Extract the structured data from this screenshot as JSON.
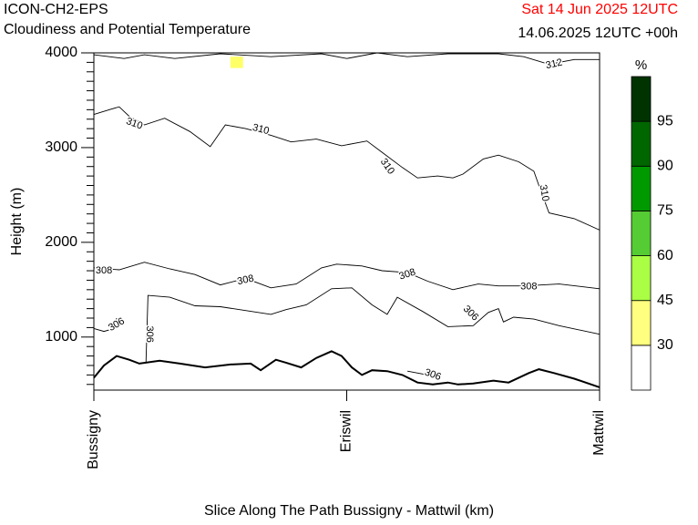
{
  "header": {
    "model": "ICON-CH2-EPS",
    "subtitle": "Cloudiness and Potential Temperature",
    "run_date": "Sat 14 Jun 2025 12UTC",
    "valid_time": "14.06.2025 12UTC +00h"
  },
  "colors": {
    "run_date": "#ff0000",
    "terrain": "#000000",
    "isentrope": "#000000",
    "cloud_patch": "#ffff66"
  },
  "chart_data": {
    "type": "cross-section",
    "xlabel": "Slice Along The Path Bussigny - Mattwil (km)",
    "ylabel": "Height (m)",
    "ylim": [
      440,
      4000
    ],
    "xlim": [
      0,
      1
    ],
    "y_ticks": [
      1000,
      2000,
      3000,
      4000
    ],
    "y_tick_labels": [
      "1000",
      "2000",
      "3000",
      "4000"
    ],
    "x_stations": [
      {
        "name": "Bussigny",
        "pos": 0.0
      },
      {
        "name": "Eriswil",
        "pos": 0.5
      },
      {
        "name": "Mattwil",
        "pos": 1.0
      }
    ],
    "terrain": {
      "x": [
        0,
        0.02,
        0.045,
        0.07,
        0.09,
        0.13,
        0.17,
        0.22,
        0.27,
        0.31,
        0.33,
        0.36,
        0.38,
        0.41,
        0.44,
        0.47,
        0.49,
        0.51,
        0.53,
        0.55,
        0.58,
        0.61,
        0.64,
        0.67,
        0.7,
        0.72,
        0.75,
        0.79,
        0.82,
        0.86,
        0.88,
        0.91,
        0.95,
        1.0
      ],
      "height": [
        570,
        700,
        800,
        760,
        720,
        750,
        720,
        680,
        710,
        720,
        650,
        760,
        730,
        680,
        780,
        850,
        800,
        680,
        600,
        650,
        640,
        600,
        520,
        500,
        520,
        500,
        510,
        540,
        520,
        620,
        660,
        620,
        560,
        470
      ]
    },
    "isentropes": [
      {
        "label": "312",
        "x": [
          0.0,
          0.06,
          0.1,
          0.16,
          0.25,
          0.35,
          0.45,
          0.5,
          0.56,
          0.62,
          0.7,
          0.8,
          0.85,
          0.9,
          0.95,
          1.0
        ],
        "height": [
          3980,
          3940,
          3980,
          3940,
          3990,
          3960,
          3990,
          3940,
          4000,
          3960,
          3990,
          3990,
          3960,
          3880,
          3930,
          3930
        ],
        "labels": [
          {
            "x": 0.91,
            "height": 3880,
            "angle": -12
          }
        ]
      },
      {
        "label": "310",
        "x": [
          0.0,
          0.03,
          0.05,
          0.07,
          0.1,
          0.14,
          0.19,
          0.23,
          0.26,
          0.3,
          0.35,
          0.39,
          0.44,
          0.49,
          0.54,
          0.57,
          0.61,
          0.64,
          0.68,
          0.71,
          0.73,
          0.77,
          0.8,
          0.84,
          0.87,
          0.88,
          0.9,
          0.95,
          1.0
        ],
        "height": [
          3350,
          3400,
          3430,
          3330,
          3240,
          3310,
          3170,
          3010,
          3240,
          3200,
          3130,
          3060,
          3090,
          3020,
          3070,
          2950,
          2790,
          2680,
          2700,
          2680,
          2720,
          2880,
          2920,
          2850,
          2750,
          2600,
          2310,
          2250,
          2130
        ],
        "labels": [
          {
            "x": 0.08,
            "height": 3250,
            "angle": 20
          },
          {
            "x": 0.33,
            "height": 3190,
            "angle": 15
          },
          {
            "x": 0.58,
            "height": 2800,
            "angle": 55
          },
          {
            "x": 0.89,
            "height": 2520,
            "angle": 80
          }
        ]
      },
      {
        "label": "308",
        "x": [
          0.0,
          0.05,
          0.1,
          0.15,
          0.2,
          0.25,
          0.3,
          0.35,
          0.4,
          0.45,
          0.48,
          0.53,
          0.57,
          0.62,
          0.66,
          0.71,
          0.76,
          0.8,
          0.85,
          0.92,
          1.0
        ],
        "height": [
          1730,
          1710,
          1790,
          1720,
          1660,
          1550,
          1620,
          1520,
          1560,
          1730,
          1770,
          1750,
          1700,
          1680,
          1590,
          1500,
          1560,
          1540,
          1540,
          1560,
          1510
        ],
        "labels": [
          {
            "x": 0.02,
            "height": 1700,
            "angle": 0
          },
          {
            "x": 0.3,
            "height": 1600,
            "angle": -12
          },
          {
            "x": 0.62,
            "height": 1660,
            "angle": -18
          },
          {
            "x": 0.86,
            "height": 1530,
            "angle": 0
          }
        ]
      },
      {
        "label": "306",
        "x": [
          0.0,
          0.02,
          0.04,
          0.045
        ],
        "height": [
          1090,
          1060,
          1090,
          1200
        ],
        "labels": [
          {
            "x": 0.045,
            "height": 1130,
            "angle": -30
          }
        ]
      },
      {
        "label": "306",
        "x": [
          0.103,
          0.107,
          0.15,
          0.2,
          0.25,
          0.3,
          0.35,
          0.38,
          0.42,
          0.47,
          0.51,
          0.55,
          0.58,
          0.6,
          0.65,
          0.7,
          0.75,
          0.78,
          0.8,
          0.81,
          0.83,
          0.87,
          0.92,
          1.0
        ],
        "height": [
          730,
          1440,
          1420,
          1330,
          1320,
          1280,
          1240,
          1290,
          1340,
          1510,
          1520,
          1340,
          1240,
          1420,
          1270,
          1110,
          1120,
          1260,
          1300,
          1160,
          1210,
          1190,
          1120,
          1030
        ],
        "labels": [
          {
            "x": 0.11,
            "height": 1030,
            "angle": 90
          },
          {
            "x": 0.745,
            "height": 1250,
            "angle": 45
          }
        ]
      },
      {
        "label": "306",
        "x": [
          0.62,
          0.68
        ],
        "height": [
          640,
          580
        ],
        "labels": [
          {
            "x": 0.67,
            "height": 600,
            "angle": 20
          }
        ]
      }
    ],
    "cloud_patches": [
      {
        "x": [
          0.27,
          0.295
        ],
        "height": [
          3840,
          3960
        ]
      }
    ],
    "legend": {
      "title": "%",
      "placement": "right",
      "levels": [
        "30",
        "45",
        "60",
        "75",
        "90",
        "95"
      ],
      "colors": [
        "#ffffff",
        "#ffff80",
        "#aaff44",
        "#55cc33",
        "#009900",
        "#006600",
        "#003300"
      ]
    }
  }
}
